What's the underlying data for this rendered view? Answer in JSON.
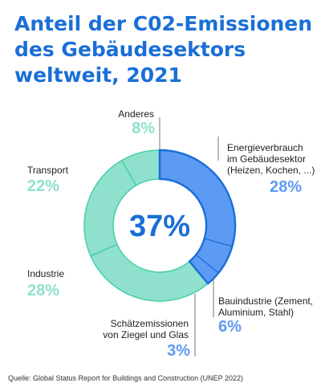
{
  "title": [
    "Anteil der C02-Emissionen",
    "des Gebäudesektors",
    "weltweit, 2021"
  ],
  "source": "Quelle: Global Status Report for Buildings and Construction (UNEP 2022)",
  "chart_data": {
    "type": "pie",
    "variant": "donut",
    "title": "Anteil der C02-Emissionen des Gebäudesektors weltweit, 2021",
    "center_label": "37%",
    "slices": [
      {
        "label": "Energieverbrauch im Gebäudesektor (Heizen, Kochen, ...)",
        "value": 28,
        "display": "28%",
        "color": "#5d9af3"
      },
      {
        "label": "Bauindustrie (Zement, Aluminium, Stahl)",
        "value": 6,
        "display": "6%",
        "color": "#5d9af3"
      },
      {
        "label": "Schätzemissionen von Ziegel und Glas",
        "value": 3,
        "display": "3%",
        "color": "#5d9af3"
      },
      {
        "label": "Industrie",
        "value": 28,
        "display": "28%",
        "color": "#8fe1cd"
      },
      {
        "label": "Transport",
        "value": 22,
        "display": "22%",
        "color": "#8fe1cd"
      },
      {
        "label": "Anderes",
        "value": 8,
        "display": "8%",
        "color": "#8fe1cd"
      }
    ],
    "labels": {
      "energie": [
        "Energieverbrauch",
        "im Gebäudesektor",
        "(Heizen, Kochen, ...)"
      ],
      "bau": [
        "Bauindustrie (Zement,",
        "Aluminium, Stahl)"
      ],
      "schaetz": [
        "Schätzemissionen",
        "von Ziegel und Glas"
      ],
      "industrie": [
        "Industrie"
      ],
      "transport": [
        "Transport"
      ],
      "anderes": [
        "Anderes"
      ]
    },
    "highlight_color": "#1a6fd6",
    "legend": "none"
  }
}
